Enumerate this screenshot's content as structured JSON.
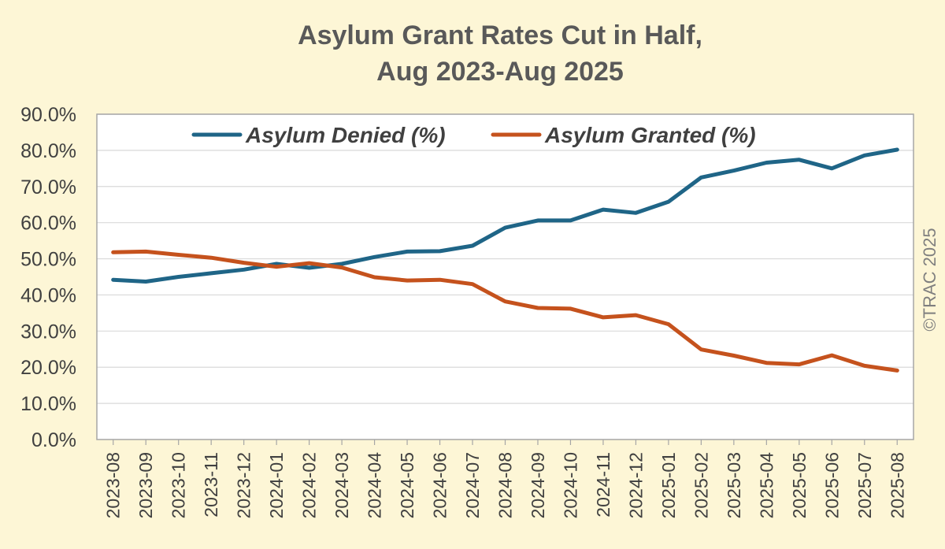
{
  "chart_data": {
    "type": "line",
    "title": [
      "Asylum Grant Rates Cut in Half,",
      "Aug 2023-Aug 2025"
    ],
    "xlabel": "",
    "ylabel": "",
    "ylim": [
      0,
      90
    ],
    "y_ticks": [
      "0.0%",
      "10.0%",
      "20.0%",
      "30.0%",
      "40.0%",
      "50.0%",
      "60.0%",
      "70.0%",
      "80.0%",
      "90.0%"
    ],
    "categories": [
      "2023-08",
      "2023-09",
      "2023-10",
      "2023-11",
      "2023-12",
      "2024-01",
      "2024-02",
      "2024-03",
      "2024-04",
      "2024-05",
      "2024-06",
      "2024-07",
      "2024-08",
      "2024-09",
      "2024-10",
      "2024-11",
      "2024-12",
      "2025-01",
      "2025-02",
      "2025-03",
      "2025-04",
      "2025-05",
      "2025-06",
      "2025-07",
      "2025-08"
    ],
    "series": [
      {
        "name": "Asylum Denied (%)",
        "color": "#1f6587",
        "values": [
          44.2,
          43.7,
          45.0,
          46.0,
          47.0,
          48.6,
          47.5,
          48.6,
          50.5,
          52.0,
          52.1,
          53.6,
          58.6,
          60.6,
          60.6,
          63.6,
          62.7,
          65.8,
          72.5,
          74.4,
          76.6,
          77.4,
          75.0,
          78.6,
          80.2
        ]
      },
      {
        "name": "Asylum Granted (%)",
        "color": "#c5521d",
        "values": [
          51.8,
          52.0,
          51.1,
          50.3,
          48.9,
          47.8,
          48.8,
          47.6,
          44.9,
          44.0,
          44.2,
          43.0,
          38.2,
          36.4,
          36.2,
          33.8,
          34.4,
          31.9,
          24.9,
          23.2,
          21.2,
          20.8,
          23.3,
          20.4,
          19.1
        ]
      }
    ],
    "grid": true,
    "legend_position": "top",
    "watermark": "©TRAC 2025"
  }
}
